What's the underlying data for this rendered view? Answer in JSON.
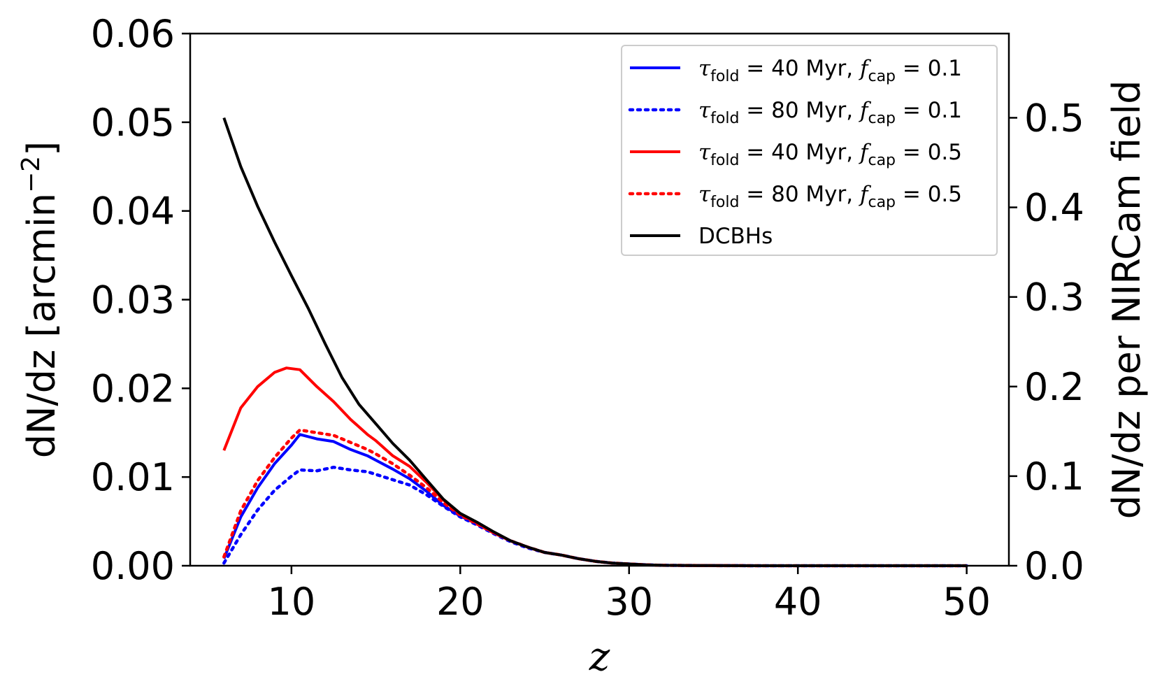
{
  "chart_data": {
    "type": "line",
    "title": "",
    "xlabel": "z",
    "ylabel": "dN/dz [arcmin",
    "ylabel_sup": "−2",
    "ylabel_close": "]",
    "y2label": "dN/dz per NIRCam field",
    "xlim": [
      4,
      52.5
    ],
    "ylim": [
      0,
      0.06
    ],
    "y2lim": [
      0,
      0.594
    ],
    "xticks": [
      10,
      20,
      30,
      40,
      50
    ],
    "xtick_labels": [
      "10",
      "20",
      "30",
      "40",
      "50"
    ],
    "yticks": [
      0,
      0.01,
      0.02,
      0.03,
      0.04,
      0.05,
      0.06
    ],
    "ytick_labels": [
      "0.00",
      "0.01",
      "0.02",
      "0.03",
      "0.04",
      "0.05",
      "0.06"
    ],
    "y2ticks": [
      0,
      0.1,
      0.2,
      0.3,
      0.4,
      0.5
    ],
    "y2tick_labels": [
      "0.0",
      "0.1",
      "0.2",
      "0.3",
      "0.4",
      "0.5"
    ],
    "legend_position": "top-right",
    "grid": false,
    "series": [
      {
        "name": "tau40_f01",
        "legend_tau": "τ",
        "legend_tau_sub": "fold",
        "legend_mid": " = 40 Myr, ",
        "legend_f": "f",
        "legend_f_sub": "cap",
        "legend_end": " = 0.1",
        "color": "#0000ff",
        "style": "solid",
        "x": [
          6,
          7,
          8,
          9,
          10,
          10.5,
          11.5,
          12.5,
          13.5,
          14.5,
          15,
          16,
          17,
          18,
          19,
          20,
          21,
          22,
          23,
          24,
          25,
          26,
          27,
          28,
          29,
          30,
          31,
          32,
          34,
          36,
          38,
          40,
          45,
          50
        ],
        "y": [
          0.0008,
          0.0055,
          0.0088,
          0.0115,
          0.0136,
          0.0148,
          0.0143,
          0.014,
          0.0131,
          0.0124,
          0.0119,
          0.0109,
          0.0098,
          0.0084,
          0.0068,
          0.0056,
          0.0047,
          0.0037,
          0.0028,
          0.0021,
          0.0015,
          0.0012,
          0.0008,
          0.0005,
          0.0003,
          0.0002,
          0.0001,
          5e-05,
          2e-05,
          1e-05,
          0.0,
          0.0,
          0.0,
          0.0
        ]
      },
      {
        "name": "tau80_f01",
        "legend_tau": "τ",
        "legend_tau_sub": "fold",
        "legend_mid": " = 80 Myr, ",
        "legend_f": "f",
        "legend_f_sub": "cap",
        "legend_end": " = 0.1",
        "color": "#0000ff",
        "style": "dotted",
        "x": [
          6,
          7,
          8,
          9,
          10,
          10.5,
          11.5,
          12.5,
          13.5,
          14.5,
          15,
          16,
          17,
          18,
          19,
          20,
          21,
          22,
          23,
          24,
          25,
          26,
          27,
          28,
          29,
          30,
          31,
          32,
          34,
          36,
          38,
          40,
          45,
          50
        ],
        "y": [
          0.0003,
          0.0035,
          0.0063,
          0.0085,
          0.0101,
          0.0108,
          0.0107,
          0.0111,
          0.0108,
          0.0106,
          0.0103,
          0.0097,
          0.0091,
          0.008,
          0.0067,
          0.0055,
          0.0046,
          0.0036,
          0.0027,
          0.002,
          0.0015,
          0.0012,
          0.0008,
          0.0005,
          0.0003,
          0.0002,
          0.0001,
          5e-05,
          2e-05,
          1e-05,
          0.0,
          0.0,
          0.0,
          0.0
        ]
      },
      {
        "name": "tau40_f05",
        "legend_tau": "τ",
        "legend_tau_sub": "fold",
        "legend_mid": " = 40 Myr, ",
        "legend_f": "f",
        "legend_f_sub": "cap",
        "legend_end": " = 0.5",
        "color": "#ff0000",
        "style": "solid",
        "x": [
          6,
          7,
          8,
          9,
          9.7,
          10.5,
          11.5,
          12.5,
          13.5,
          14.5,
          15,
          16,
          17,
          18,
          19,
          20,
          21,
          22,
          23,
          24,
          25,
          26,
          27,
          28,
          29,
          30,
          31,
          32,
          34,
          36,
          38,
          40,
          45,
          50
        ],
        "y": [
          0.013,
          0.0178,
          0.0202,
          0.0218,
          0.0223,
          0.0221,
          0.0202,
          0.0185,
          0.0165,
          0.0148,
          0.0141,
          0.0124,
          0.0112,
          0.0094,
          0.0074,
          0.0058,
          0.0048,
          0.0037,
          0.0028,
          0.0021,
          0.0015,
          0.0012,
          0.0008,
          0.0005,
          0.0003,
          0.0002,
          0.0001,
          5e-05,
          2e-05,
          1e-05,
          0.0,
          0.0,
          0.0,
          0.0
        ]
      },
      {
        "name": "tau80_f05",
        "legend_tau": "τ",
        "legend_tau_sub": "fold",
        "legend_mid": " = 80 Myr, ",
        "legend_f": "f",
        "legend_f_sub": "cap",
        "legend_end": " = 0.5",
        "color": "#ff0000",
        "style": "dotted",
        "x": [
          6,
          7,
          8,
          9,
          10,
          10.5,
          11.5,
          12.5,
          13.5,
          14.5,
          15,
          16,
          17,
          18,
          19,
          20,
          21,
          22,
          23,
          24,
          25,
          26,
          27,
          28,
          29,
          30,
          31,
          32,
          34,
          36,
          38,
          40,
          45,
          50
        ],
        "y": [
          0.001,
          0.0062,
          0.0096,
          0.0122,
          0.0144,
          0.0153,
          0.015,
          0.0147,
          0.0139,
          0.0131,
          0.0126,
          0.0115,
          0.0102,
          0.0088,
          0.0071,
          0.0057,
          0.0047,
          0.0037,
          0.0028,
          0.0021,
          0.0015,
          0.0012,
          0.0008,
          0.0005,
          0.0003,
          0.0002,
          0.0001,
          5e-05,
          2e-05,
          1e-05,
          0.0,
          0.0,
          0.0,
          0.0
        ]
      },
      {
        "name": "DCBHs",
        "legend_label": "DCBHs",
        "color": "#000000",
        "style": "solid",
        "x": [
          6,
          7,
          8,
          9,
          10,
          11,
          12,
          13,
          14,
          15,
          16,
          17,
          18,
          19,
          20,
          21,
          22,
          23,
          24,
          25,
          26,
          27,
          28,
          29,
          30,
          31,
          32,
          34,
          36,
          38,
          40,
          45,
          50
        ],
        "y": [
          0.0505,
          0.045,
          0.0405,
          0.0365,
          0.0327,
          0.029,
          0.025,
          0.0212,
          0.0182,
          0.016,
          0.0138,
          0.0119,
          0.0097,
          0.0075,
          0.0059,
          0.0049,
          0.0038,
          0.0028,
          0.0021,
          0.0015,
          0.0012,
          0.0008,
          0.0005,
          0.0003,
          0.0002,
          0.0001,
          5e-05,
          2e-05,
          1e-05,
          0.0,
          0.0,
          0.0,
          0.0
        ]
      }
    ]
  }
}
